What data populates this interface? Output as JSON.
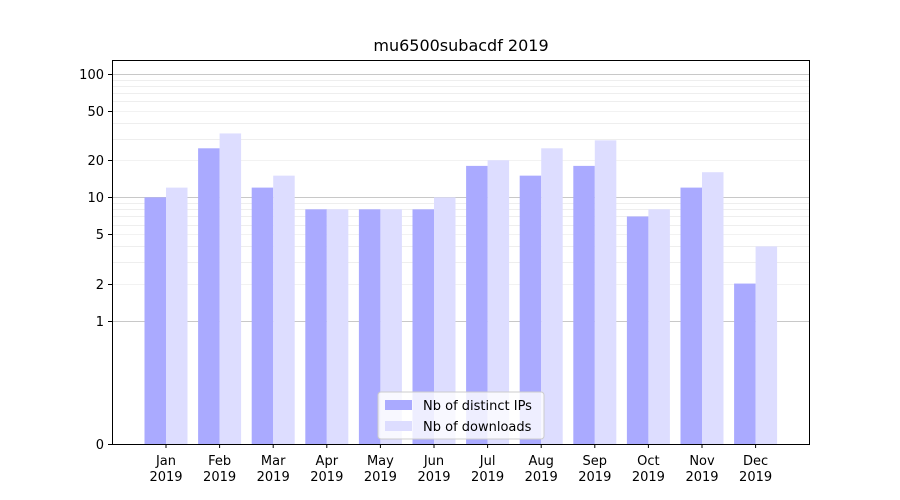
{
  "chart_data": {
    "type": "bar",
    "title": "mu6500subacdf 2019",
    "xlabel": "",
    "ylabel": "",
    "y_scale": "symlog",
    "ylim": [
      0,
      130
    ],
    "y_ticks": [
      0,
      1,
      2,
      5,
      10,
      20,
      50,
      100
    ],
    "grid": true,
    "legend_position": "bottom-center",
    "categories": [
      "Jan\n2019",
      "Feb\n2019",
      "Mar\n2019",
      "Apr\n2019",
      "May\n2019",
      "Jun\n2019",
      "Jul\n2019",
      "Aug\n2019",
      "Sep\n2019",
      "Oct\n2019",
      "Nov\n2019",
      "Dec\n2019"
    ],
    "series": [
      {
        "name": "Nb of distinct IPs",
        "color": "#aaaaff",
        "values": [
          10,
          25,
          12,
          8,
          8,
          8,
          18,
          15,
          18,
          7,
          12,
          2
        ]
      },
      {
        "name": "Nb of downloads",
        "color": "#ddddff",
        "values": [
          12,
          33,
          15,
          8,
          8,
          10,
          20,
          25,
          29,
          8,
          16,
          4
        ]
      }
    ]
  }
}
